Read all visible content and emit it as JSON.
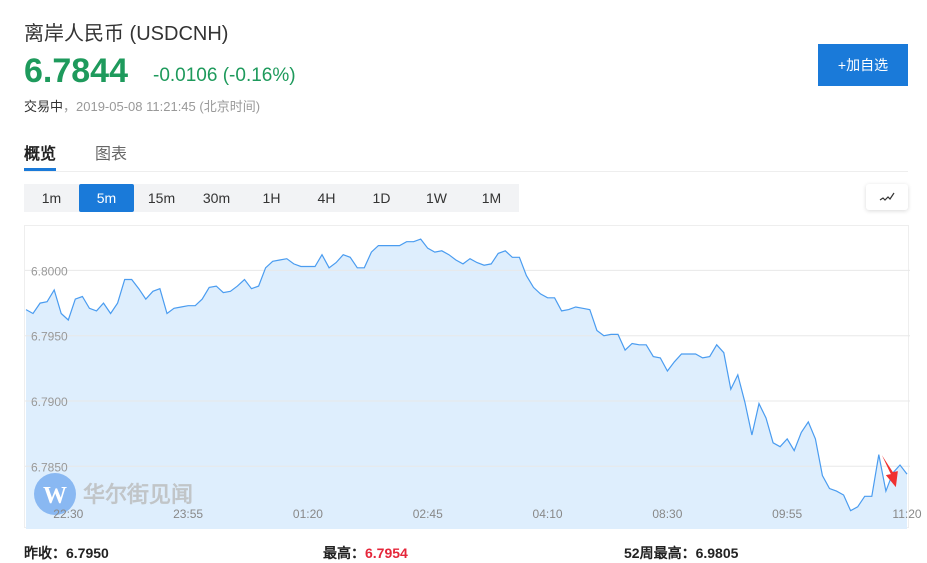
{
  "header": {
    "title": "离岸人民币  (USDCNH)",
    "price": "6.7844",
    "change": "-0.0106 (-0.16%)",
    "status": "交易中",
    "timestamp": "，2019-05-08 11:21:45 (北京时间)",
    "add_watchlist": "+加自选"
  },
  "tabs": [
    {
      "label": "概览",
      "active": true
    },
    {
      "label": "图表",
      "active": false
    }
  ],
  "periods": [
    {
      "label": "1m"
    },
    {
      "label": "5m",
      "active": true
    },
    {
      "label": "15m"
    },
    {
      "label": "30m"
    },
    {
      "label": "1H"
    },
    {
      "label": "4H"
    },
    {
      "label": "1D"
    },
    {
      "label": "1W"
    },
    {
      "label": "1M"
    }
  ],
  "chart_type_icon": "line-chart-icon",
  "watermark": "华尔街见闻",
  "colors": {
    "up_down_green": "#1e9a5c",
    "accent": "#1a7ad9",
    "line": "#4a9cf0",
    "fill": "#deeefd",
    "high_red": "#e5263a",
    "arrow": "#f03030"
  },
  "stats": [
    {
      "label": "昨收：",
      "value": "6.7950"
    },
    {
      "label": "最高：",
      "value": "6.7954"
    },
    {
      "label": "52周最高：",
      "value": "6.9805"
    }
  ],
  "chart_data": {
    "type": "area",
    "ylim": [
      6.7802,
      6.8034
    ],
    "yticks": [
      "6.8000",
      "6.7950",
      "6.7900",
      "6.7850"
    ],
    "grid": true,
    "xticks": [
      {
        "label": "22:30",
        "index": 6
      },
      {
        "label": "23:55",
        "index": 23
      },
      {
        "label": "01:20",
        "index": 40
      },
      {
        "label": "02:45",
        "index": 57
      },
      {
        "label": "04:10",
        "index": 74
      },
      {
        "label": "08:30",
        "index": 91
      },
      {
        "label": "09:55",
        "index": 108
      },
      {
        "label": "11:20",
        "index": 125
      }
    ],
    "values": [
      6.797,
      6.7967,
      6.7975,
      6.7976,
      6.7985,
      6.7967,
      6.7962,
      6.7978,
      6.798,
      6.7971,
      6.7969,
      6.7975,
      6.7967,
      6.7975,
      6.7993,
      6.7993,
      6.7986,
      6.7978,
      6.7984,
      6.7986,
      6.7967,
      6.7971,
      6.7972,
      6.7973,
      6.7973,
      6.7978,
      6.7987,
      6.7988,
      6.7983,
      6.7984,
      6.7988,
      6.7993,
      6.7986,
      6.7988,
      6.8002,
      6.8007,
      6.8008,
      6.8009,
      6.8005,
      6.8003,
      6.8003,
      6.8003,
      6.8012,
      6.8002,
      6.8006,
      6.8012,
      6.801,
      6.8002,
      6.8002,
      6.8014,
      6.8019,
      6.8019,
      6.8019,
      6.8019,
      6.8022,
      6.8022,
      6.8024,
      6.8017,
      6.8014,
      6.8015,
      6.8012,
      6.8008,
      6.8005,
      6.8009,
      6.8006,
      6.8004,
      6.8005,
      6.8013,
      6.8015,
      6.801,
      6.801,
      6.7996,
      6.7987,
      6.7982,
      6.7979,
      6.7979,
      6.7969,
      6.797,
      6.7972,
      6.7971,
      6.797,
      6.7954,
      6.795,
      6.7951,
      6.7951,
      6.7939,
      6.7944,
      6.7943,
      6.7943,
      6.7934,
      6.7933,
      6.7923,
      6.793,
      6.7936,
      6.7936,
      6.7936,
      6.7933,
      6.7934,
      6.7943,
      6.7937,
      6.7909,
      6.792,
      6.7899,
      6.7874,
      6.7898,
      6.7887,
      6.7868,
      6.7865,
      6.7871,
      6.7862,
      6.7876,
      6.7884,
      6.7871,
      6.7843,
      6.7833,
      6.7831,
      6.7828,
      6.7816,
      6.7819,
      6.7827,
      6.7827,
      6.7859,
      6.7831,
      6.7845,
      6.7851,
      6.7844
    ],
    "annotation": {
      "type": "arrow",
      "points_to_index": 122
    }
  }
}
